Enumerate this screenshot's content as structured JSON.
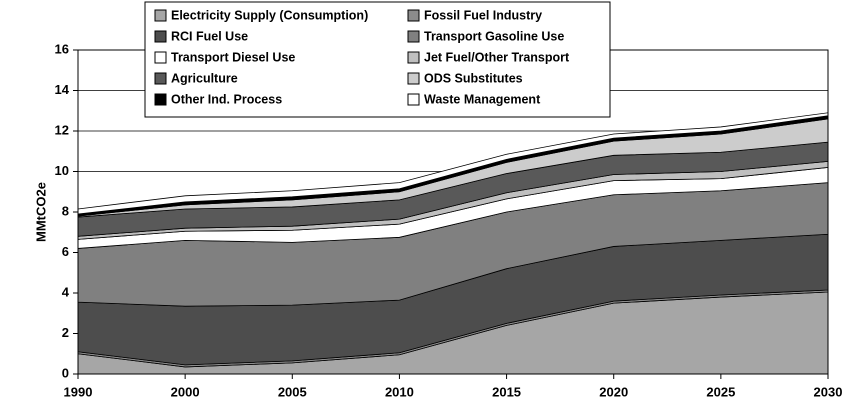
{
  "chart_data": {
    "type": "stacked_area",
    "y_label": "MMtCO2e",
    "categories": [
      "1990",
      "2000",
      "2005",
      "2010",
      "2015",
      "2020",
      "2025",
      "2030"
    ],
    "ylim": [
      0,
      16
    ],
    "yticks": [
      0,
      2,
      4,
      6,
      8,
      10,
      12,
      14,
      16
    ],
    "grid": true,
    "series": [
      {
        "name": "Electricity Supply (Consumption)",
        "color": "#a6a6a6",
        "values": [
          1.0,
          0.35,
          0.55,
          0.95,
          2.4,
          3.5,
          3.8,
          4.05
        ]
      },
      {
        "name": "Fossil Fuel Industry",
        "color": "#8c8c8c",
        "values": [
          0.1,
          0.1,
          0.1,
          0.1,
          0.1,
          0.1,
          0.1,
          0.1
        ]
      },
      {
        "name": "RCI Fuel Use",
        "color": "#4d4d4d",
        "values": [
          2.45,
          2.9,
          2.75,
          2.6,
          2.7,
          2.7,
          2.7,
          2.75
        ]
      },
      {
        "name": "Transport Gasoline Use",
        "color": "#808080",
        "values": [
          2.65,
          3.25,
          3.1,
          3.1,
          2.8,
          2.55,
          2.45,
          2.55
        ]
      },
      {
        "name": "Transport Diesel Use",
        "color": "#ffffff",
        "values": [
          0.45,
          0.45,
          0.6,
          0.65,
          0.65,
          0.7,
          0.6,
          0.75
        ]
      },
      {
        "name": "Jet Fuel/Other Transport",
        "color": "#bfbfbf",
        "values": [
          0.15,
          0.15,
          0.2,
          0.25,
          0.3,
          0.3,
          0.35,
          0.3
        ]
      },
      {
        "name": "Agriculture",
        "color": "#595959",
        "values": [
          0.95,
          0.95,
          0.95,
          0.95,
          0.95,
          0.95,
          0.95,
          0.95
        ]
      },
      {
        "name": "ODS Substitutes",
        "color": "#cccccc",
        "values": [
          0.05,
          0.2,
          0.35,
          0.4,
          0.55,
          0.7,
          0.9,
          1.15
        ]
      },
      {
        "name": "Other Ind. Process",
        "color": "#000000",
        "values": [
          0.1,
          0.15,
          0.15,
          0.15,
          0.15,
          0.15,
          0.15,
          0.15
        ]
      },
      {
        "name": "Waste Management",
        "color": "#ffffff",
        "values": [
          0.25,
          0.3,
          0.3,
          0.3,
          0.25,
          0.2,
          0.2,
          0.15
        ]
      }
    ]
  }
}
